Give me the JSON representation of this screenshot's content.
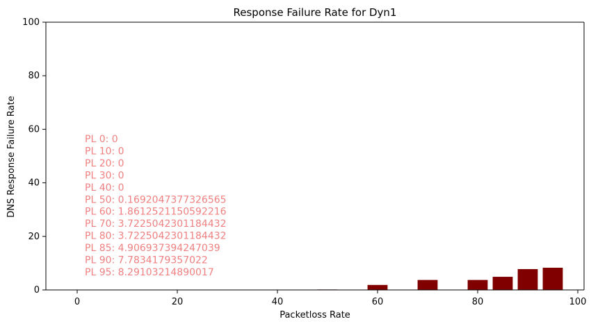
{
  "chart_data": {
    "type": "bar",
    "title": "Response Failure Rate for Dyn1",
    "xlabel": "Packetloss Rate",
    "ylabel": "DNS Response Failure Rate",
    "xlim": [
      -6.25,
      101.25
    ],
    "ylim": [
      0,
      100
    ],
    "xticks": [
      0,
      20,
      40,
      60,
      80,
      100
    ],
    "yticks": [
      0,
      20,
      40,
      60,
      80,
      100
    ],
    "bar_width": 4,
    "bar_color": "#800000",
    "grid": false,
    "x": [
      0,
      10,
      20,
      30,
      40,
      50,
      60,
      70,
      80,
      85,
      90,
      95
    ],
    "values": [
      0,
      0,
      0,
      0,
      0,
      0.1692047377326565,
      1.8612521150592216,
      3.7225042301184432,
      3.7225042301184432,
      4.906937394247039,
      7.7834179357022,
      8.29103214890017
    ],
    "annotation_color": "#f08080",
    "annotation_lines": [
      "PL 0: 0",
      "PL 10: 0",
      "PL 20: 0",
      "PL 30: 0",
      "PL 40: 0",
      "PL 50: 0.1692047377326565",
      "PL 60: 1.8612521150592216",
      "PL 70: 3.7225042301184432",
      "PL 80: 3.7225042301184432",
      "PL 85: 4.906937394247039",
      "PL 90: 7.7834179357022",
      "PL 95: 8.29103214890017"
    ]
  }
}
